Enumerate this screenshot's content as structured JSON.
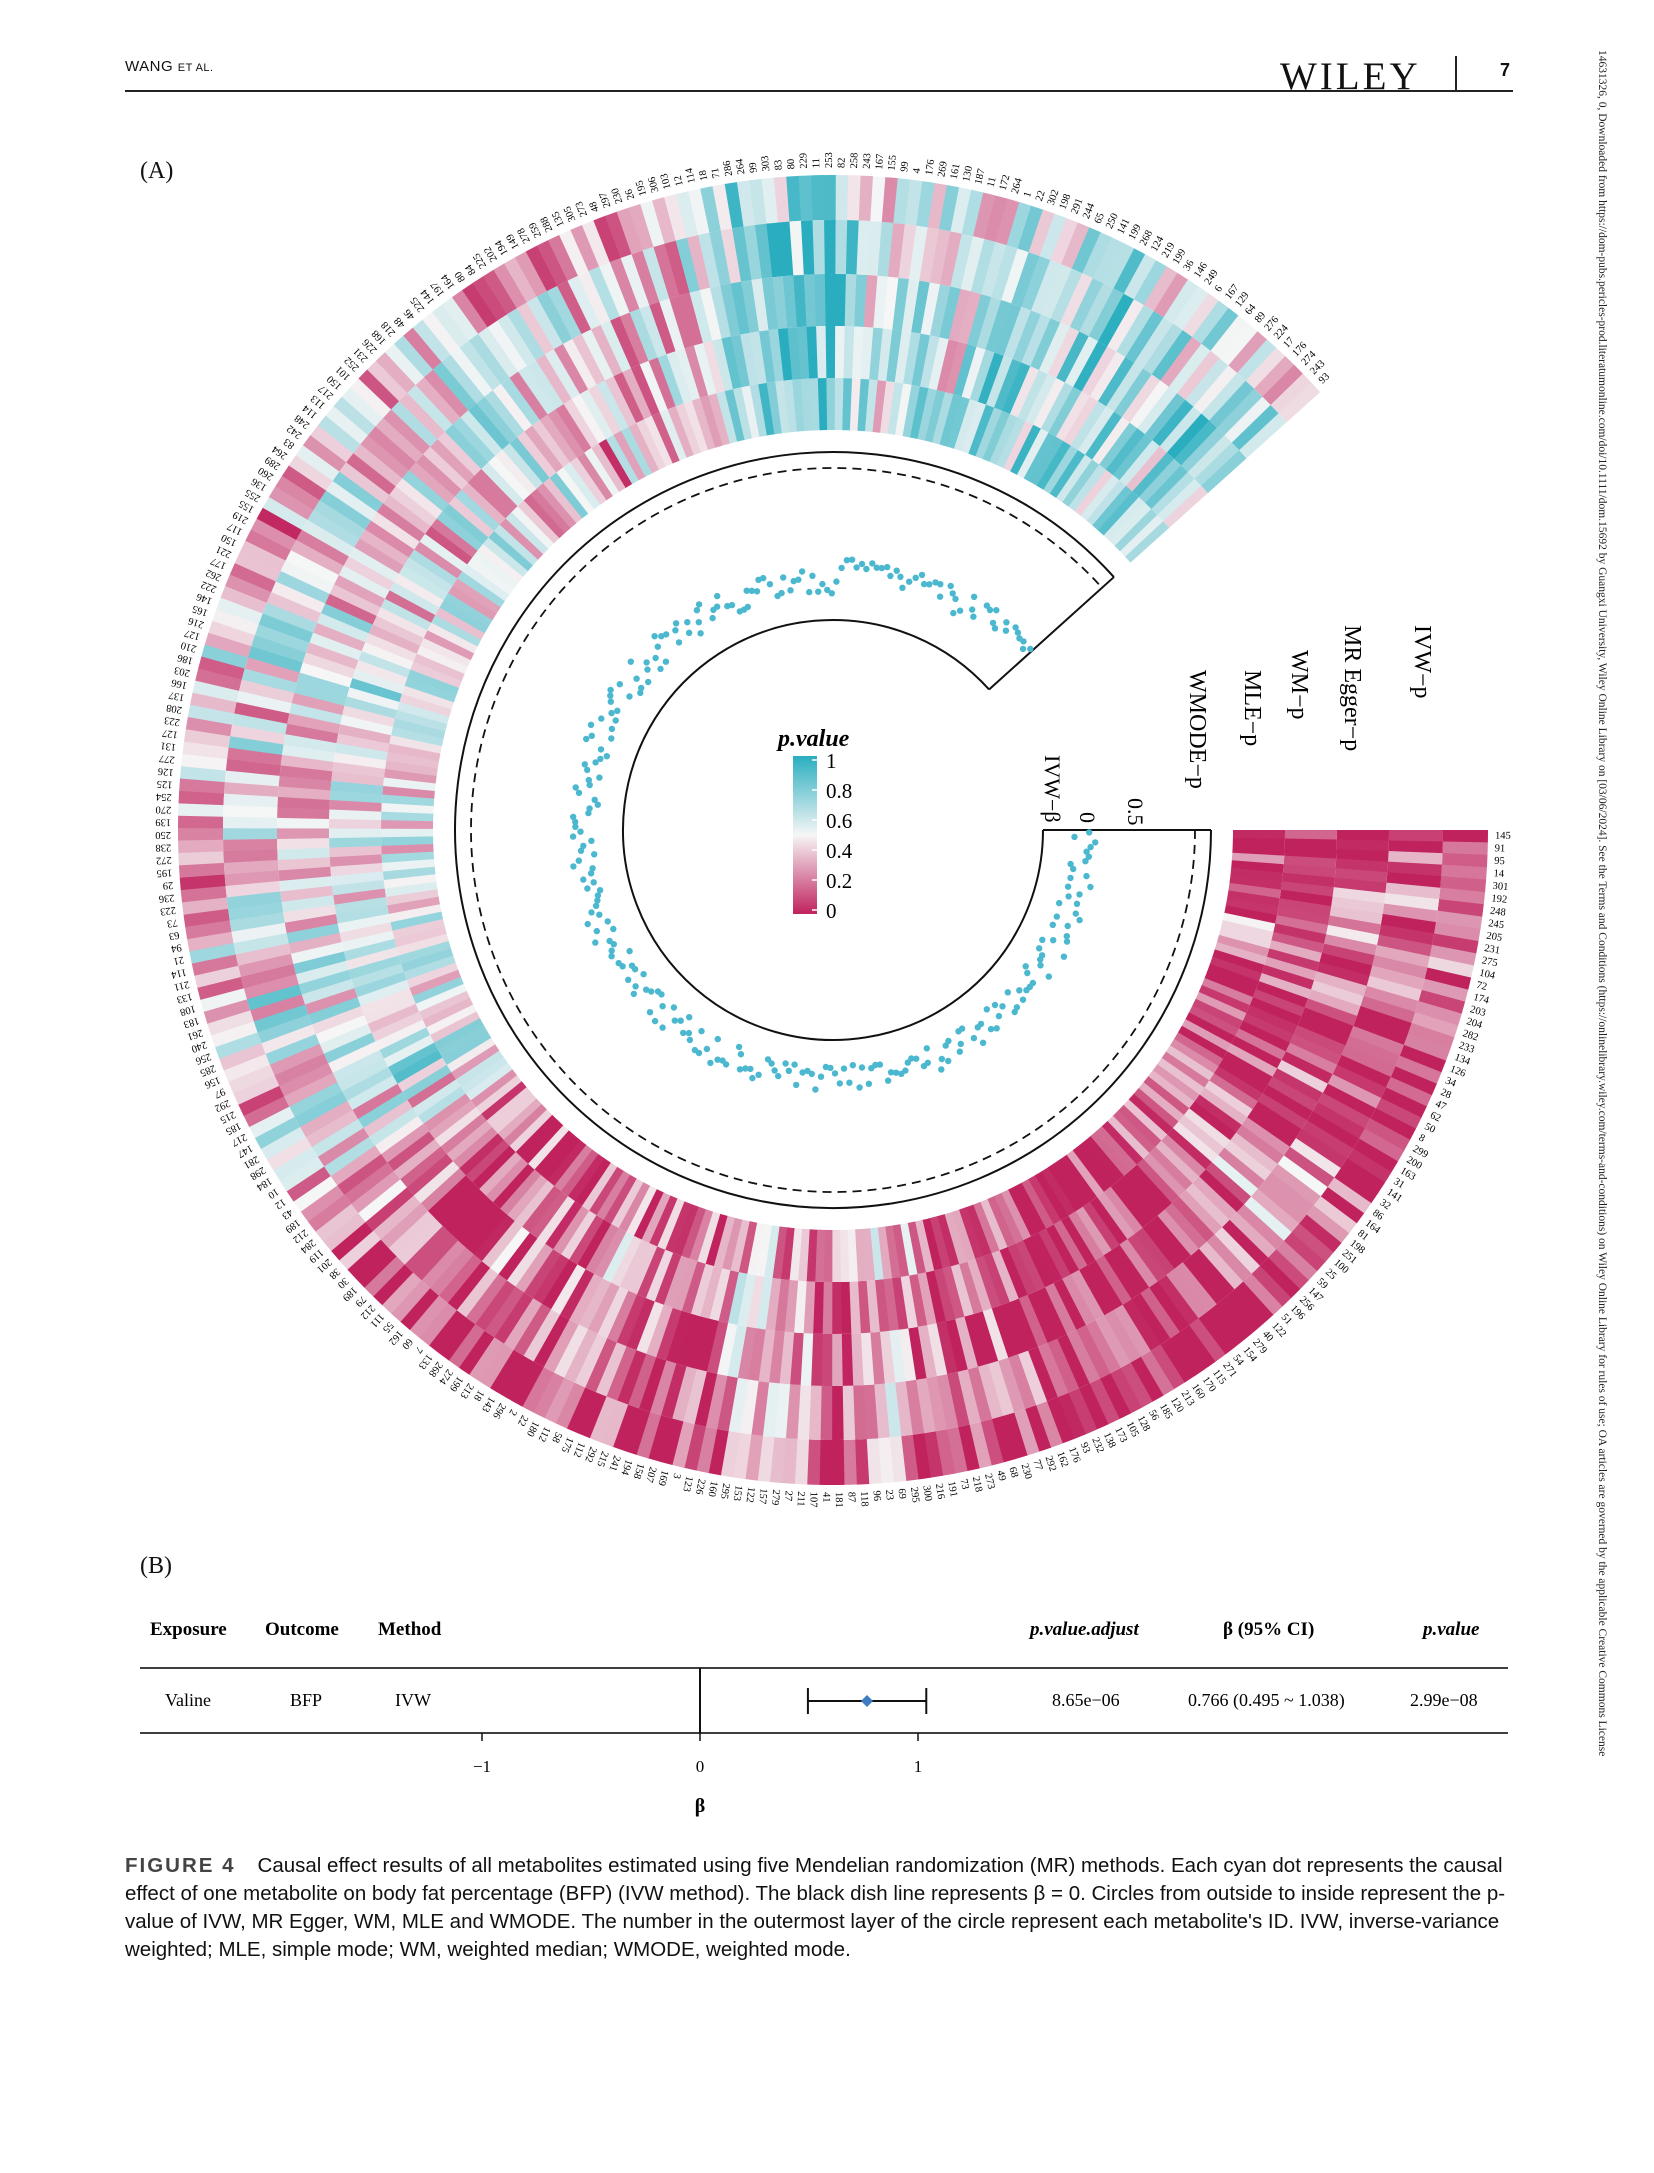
{
  "header": {
    "authors": "WANG",
    "etal": "ET AL.",
    "publisher": "WILEY",
    "page": "7"
  },
  "side_note": "14631326, 0, Downloaded from https://dom-pubs.pericles-prod.literatumonline.com/doi/10.1111/dom.15692 by Guangxi University, Wiley Online Library on [03/06/2024]. See the Terms and Conditions (https://onlinelibrary.wiley.com/terms-and-conditions) on Wiley Online Library for rules of use; OA articles are governed by the applicable Creative Commons License",
  "panelA": {
    "label": "(A)",
    "ring_labels": [
      "IVW−p",
      "MR Egger−p",
      "WM−p",
      "MLE−p",
      "WMODE−p"
    ],
    "beta_label": "IVW−β",
    "beta_ticks": [
      "0",
      "0.5"
    ],
    "legend": {
      "title": "p.value",
      "ticks": [
        "1",
        "0.8",
        "0.6",
        "0.4",
        "0.2",
        "0"
      ],
      "colors": {
        "high": "#2aaebf",
        "mid": "#f6f6f6",
        "low": "#c0225e"
      }
    },
    "dot_color": "#4bb8cf",
    "ids": [
      "145",
      "91",
      "95",
      "14",
      "301",
      "192",
      "248",
      "245",
      "205",
      "231",
      "275",
      "104",
      "72",
      "174",
      "203",
      "204",
      "282",
      "233",
      "134",
      "126",
      "34",
      "28",
      "47",
      "62",
      "50",
      "8",
      "299",
      "200",
      "163",
      "31",
      "141",
      "32",
      "86",
      "164",
      "81",
      "198",
      "251",
      "100",
      "25",
      "59",
      "147",
      "256",
      "196",
      "51",
      "122",
      "40",
      "279",
      "154",
      "54",
      "271",
      "115",
      "170",
      "160",
      "213",
      "120",
      "185",
      "56",
      "128",
      "105",
      "173",
      "138",
      "232",
      "93",
      "176",
      "162",
      "292",
      "77",
      "230",
      "68",
      "49",
      "273",
      "218",
      "73",
      "191",
      "216",
      "300",
      "295",
      "69",
      "23",
      "96",
      "118",
      "87",
      "181",
      "41",
      "107",
      "211",
      "27",
      "279",
      "157",
      "122",
      "153",
      "295",
      "160",
      "226",
      "123",
      "3",
      "169",
      "207",
      "158",
      "194",
      "241",
      "215",
      "292",
      "112",
      "175",
      "58",
      "112",
      "180",
      "22",
      "2",
      "296",
      "143",
      "18",
      "213",
      "199",
      "274",
      "268",
      "133",
      "7",
      "60",
      "162",
      "55",
      "111",
      "212",
      "79",
      "189",
      "30",
      "38",
      "201",
      "119",
      "284",
      "212",
      "189",
      "43",
      "12",
      "10",
      "184",
      "298",
      "281",
      "147",
      "217",
      "185",
      "215",
      "292",
      "97",
      "156",
      "285",
      "256",
      "240",
      "261",
      "183",
      "108",
      "133",
      "211",
      "114",
      "21",
      "94",
      "63",
      "73",
      "223",
      "236",
      "29",
      "195",
      "272",
      "238",
      "250",
      "139",
      "270",
      "254",
      "125",
      "126",
      "277",
      "131",
      "127",
      "223",
      "208",
      "137",
      "166",
      "203",
      "186",
      "210",
      "127",
      "216",
      "165",
      "146",
      "222",
      "262",
      "177",
      "221",
      "150",
      "117",
      "219",
      "155",
      "255",
      "136",
      "260",
      "289",
      "264",
      "83",
      "242",
      "248",
      "114",
      "113",
      "217",
      "150",
      "101",
      "252",
      "231",
      "226",
      "168",
      "218",
      "48",
      "46",
      "225",
      "144",
      "197",
      "164",
      "80",
      "84",
      "225",
      "202",
      "194",
      "149",
      "278",
      "259",
      "288",
      "135",
      "305",
      "273",
      "48",
      "297",
      "230",
      "26",
      "195",
      "306",
      "103",
      "12",
      "114",
      "18",
      "71",
      "286",
      "264",
      "99",
      "303",
      "83",
      "80",
      "229",
      "11",
      "253",
      "82",
      "258",
      "243",
      "167",
      "155",
      "99",
      "4",
      "176",
      "269",
      "161",
      "130",
      "187",
      "11",
      "172",
      "264",
      "1",
      "22",
      "302",
      "198",
      "291",
      "244",
      "65",
      "250",
      "141",
      "199",
      "268",
      "124",
      "219",
      "199",
      "36",
      "146",
      "249",
      "6",
      "167",
      "129",
      "64",
      "89",
      "276",
      "224",
      "17",
      "176",
      "274",
      "243",
      "93"
    ]
  },
  "panelB": {
    "label": "(B)",
    "headers": {
      "exposure": "Exposure",
      "outcome": "Outcome",
      "method": "Method",
      "p_adjust": "p.value.adjust",
      "beta_ci": "β (95% CI)",
      "pvalue": "p.value"
    },
    "row": {
      "exposure": "Valine",
      "outcome": "BFP",
      "method": "IVW",
      "p_adjust": "8.65e−06",
      "beta_ci": "0.766 (0.495 ~ 1.038)",
      "pvalue": "2.99e−08"
    },
    "axis": {
      "ticks": [
        "−1",
        "0",
        "1"
      ],
      "label": "β"
    },
    "chart_data": {
      "type": "scatter",
      "title": "",
      "xlabel": "β",
      "ylabel": "",
      "xlim": [
        -1.3,
        1.3
      ],
      "x": [
        0.766
      ],
      "ci_low": [
        0.495
      ],
      "ci_high": [
        1.038
      ],
      "reference_line": 0,
      "marker_color": "#3d7cc0"
    }
  },
  "caption": {
    "figure": "FIGURE 4",
    "text": "Causal effect results of all metabolites estimated using five Mendelian randomization (MR) methods. Each cyan dot represents the causal effect of one metabolite on body fat percentage (BFP) (IVW method). The black dish line represents β = 0. Circles from outside to inside represent the p-value of IVW, MR Egger, WM, MLE and WMODE. The number in the outermost layer of the circle represent each metabolite's ID. IVW, inverse-variance weighted; MLE, simple mode; WM, weighted median; WMODE, weighted mode."
  }
}
